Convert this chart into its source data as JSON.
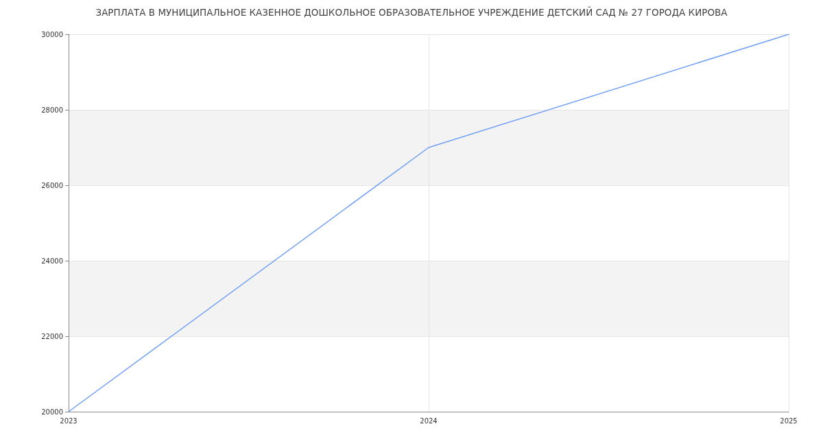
{
  "chart_data": {
    "type": "line",
    "title": "ЗАРПЛАТА В МУНИЦИПАЛЬНОЕ КАЗЕННОЕ ДОШКОЛЬНОЕ ОБРАЗОВАТЕЛЬНОЕ УЧРЕЖДЕНИЕ ДЕТСКИЙ САД № 27 ГОРОДА КИРОВА",
    "x": [
      2023,
      2024,
      2025
    ],
    "series": [
      {
        "color": "#6f9ef6",
        "values": [
          20000,
          27000,
          30000
        ]
      }
    ],
    "xlim": [
      2023,
      2025
    ],
    "xticks": [
      2023,
      2024,
      2025
    ],
    "ylim": [
      20000,
      30000
    ],
    "yticks": [
      20000,
      22000,
      24000,
      26000,
      28000,
      30000
    ],
    "grid": true,
    "marker": "none",
    "line_style": "solid"
  }
}
